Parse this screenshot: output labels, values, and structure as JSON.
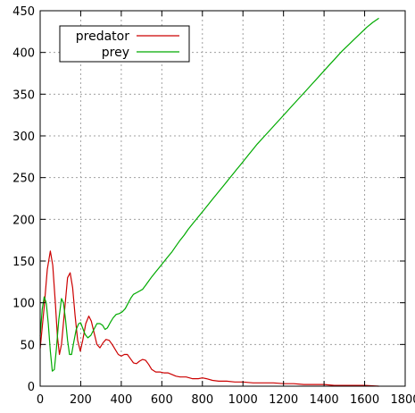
{
  "chart_data": {
    "type": "line",
    "title": "",
    "xlabel": "",
    "ylabel": "",
    "xlim": [
      0,
      1800
    ],
    "ylim": [
      0,
      450
    ],
    "xticks": [
      0,
      200,
      400,
      600,
      800,
      1000,
      1200,
      1400,
      1600,
      1800
    ],
    "yticks": [
      0,
      50,
      100,
      150,
      200,
      250,
      300,
      350,
      400,
      450
    ],
    "xtick_labels": [
      "0",
      "200",
      "400",
      "600",
      "800",
      "1000",
      "1200",
      "1400",
      "1600",
      "1800"
    ],
    "ytick_labels": [
      "0",
      "50",
      "100",
      "150",
      "200",
      "250",
      "300",
      "350",
      "400",
      "450"
    ],
    "grid": true,
    "legend_position": "top-left",
    "series": [
      {
        "name": "predator",
        "color": "#cc0000",
        "points": [
          [
            0,
            45
          ],
          [
            20,
            95
          ],
          [
            35,
            140
          ],
          [
            50,
            162
          ],
          [
            62,
            145
          ],
          [
            75,
            100
          ],
          [
            85,
            60
          ],
          [
            95,
            38
          ],
          [
            105,
            50
          ],
          [
            120,
            90
          ],
          [
            135,
            130
          ],
          [
            148,
            136
          ],
          [
            160,
            118
          ],
          [
            172,
            85
          ],
          [
            185,
            55
          ],
          [
            198,
            42
          ],
          [
            210,
            55
          ],
          [
            225,
            75
          ],
          [
            240,
            84
          ],
          [
            252,
            78
          ],
          [
            265,
            65
          ],
          [
            280,
            50
          ],
          [
            295,
            46
          ],
          [
            310,
            52
          ],
          [
            325,
            56
          ],
          [
            340,
            55
          ],
          [
            355,
            50
          ],
          [
            370,
            44
          ],
          [
            385,
            38
          ],
          [
            400,
            36
          ],
          [
            415,
            38
          ],
          [
            430,
            38
          ],
          [
            445,
            33
          ],
          [
            460,
            28
          ],
          [
            475,
            27
          ],
          [
            490,
            30
          ],
          [
            505,
            32
          ],
          [
            520,
            31
          ],
          [
            535,
            26
          ],
          [
            550,
            20
          ],
          [
            570,
            17
          ],
          [
            590,
            17
          ],
          [
            610,
            16
          ],
          [
            630,
            16
          ],
          [
            650,
            14
          ],
          [
            670,
            12
          ],
          [
            690,
            11
          ],
          [
            720,
            11
          ],
          [
            750,
            9
          ],
          [
            780,
            9
          ],
          [
            800,
            10
          ],
          [
            820,
            9
          ],
          [
            850,
            7
          ],
          [
            880,
            6
          ],
          [
            920,
            6
          ],
          [
            960,
            5
          ],
          [
            1000,
            5
          ],
          [
            1050,
            4
          ],
          [
            1100,
            4
          ],
          [
            1150,
            4
          ],
          [
            1200,
            3
          ],
          [
            1250,
            3
          ],
          [
            1300,
            2
          ],
          [
            1350,
            2
          ],
          [
            1400,
            2
          ],
          [
            1450,
            1
          ],
          [
            1500,
            1
          ],
          [
            1550,
            1
          ],
          [
            1600,
            1
          ],
          [
            1670,
            0
          ]
        ]
      },
      {
        "name": "prey",
        "color": "#00aa00",
        "points": [
          [
            0,
            60
          ],
          [
            10,
            92
          ],
          [
            20,
            107
          ],
          [
            30,
            100
          ],
          [
            40,
            75
          ],
          [
            50,
            42
          ],
          [
            60,
            18
          ],
          [
            70,
            20
          ],
          [
            80,
            45
          ],
          [
            92,
            80
          ],
          [
            105,
            105
          ],
          [
            115,
            100
          ],
          [
            125,
            80
          ],
          [
            135,
            55
          ],
          [
            145,
            38
          ],
          [
            155,
            38
          ],
          [
            165,
            52
          ],
          [
            178,
            68
          ],
          [
            190,
            75
          ],
          [
            200,
            76
          ],
          [
            212,
            68
          ],
          [
            222,
            62
          ],
          [
            235,
            58
          ],
          [
            250,
            61
          ],
          [
            265,
            68
          ],
          [
            280,
            75
          ],
          [
            295,
            75
          ],
          [
            308,
            73
          ],
          [
            320,
            68
          ],
          [
            332,
            70
          ],
          [
            345,
            76
          ],
          [
            360,
            82
          ],
          [
            375,
            86
          ],
          [
            390,
            87
          ],
          [
            405,
            89
          ],
          [
            420,
            93
          ],
          [
            435,
            100
          ],
          [
            448,
            106
          ],
          [
            460,
            110
          ],
          [
            475,
            112
          ],
          [
            490,
            114
          ],
          [
            505,
            116
          ],
          [
            520,
            121
          ],
          [
            535,
            126
          ],
          [
            550,
            131
          ],
          [
            570,
            137
          ],
          [
            590,
            143
          ],
          [
            610,
            149
          ],
          [
            630,
            155
          ],
          [
            650,
            161
          ],
          [
            670,
            168
          ],
          [
            690,
            175
          ],
          [
            710,
            181
          ],
          [
            730,
            188
          ],
          [
            750,
            194
          ],
          [
            770,
            200
          ],
          [
            790,
            206
          ],
          [
            810,
            212
          ],
          [
            830,
            218
          ],
          [
            850,
            224
          ],
          [
            870,
            230
          ],
          [
            890,
            236
          ],
          [
            910,
            242
          ],
          [
            930,
            248
          ],
          [
            950,
            254
          ],
          [
            970,
            260
          ],
          [
            990,
            266
          ],
          [
            1010,
            272
          ],
          [
            1030,
            278
          ],
          [
            1050,
            284
          ],
          [
            1070,
            290
          ],
          [
            1100,
            298
          ],
          [
            1130,
            306
          ],
          [
            1160,
            314
          ],
          [
            1190,
            322
          ],
          [
            1220,
            330
          ],
          [
            1250,
            338
          ],
          [
            1280,
            346
          ],
          [
            1310,
            354
          ],
          [
            1340,
            362
          ],
          [
            1370,
            370
          ],
          [
            1400,
            378
          ],
          [
            1430,
            386
          ],
          [
            1460,
            394
          ],
          [
            1490,
            402
          ],
          [
            1520,
            409
          ],
          [
            1550,
            416
          ],
          [
            1580,
            423
          ],
          [
            1610,
            430
          ],
          [
            1640,
            436
          ],
          [
            1670,
            441
          ]
        ]
      }
    ]
  }
}
